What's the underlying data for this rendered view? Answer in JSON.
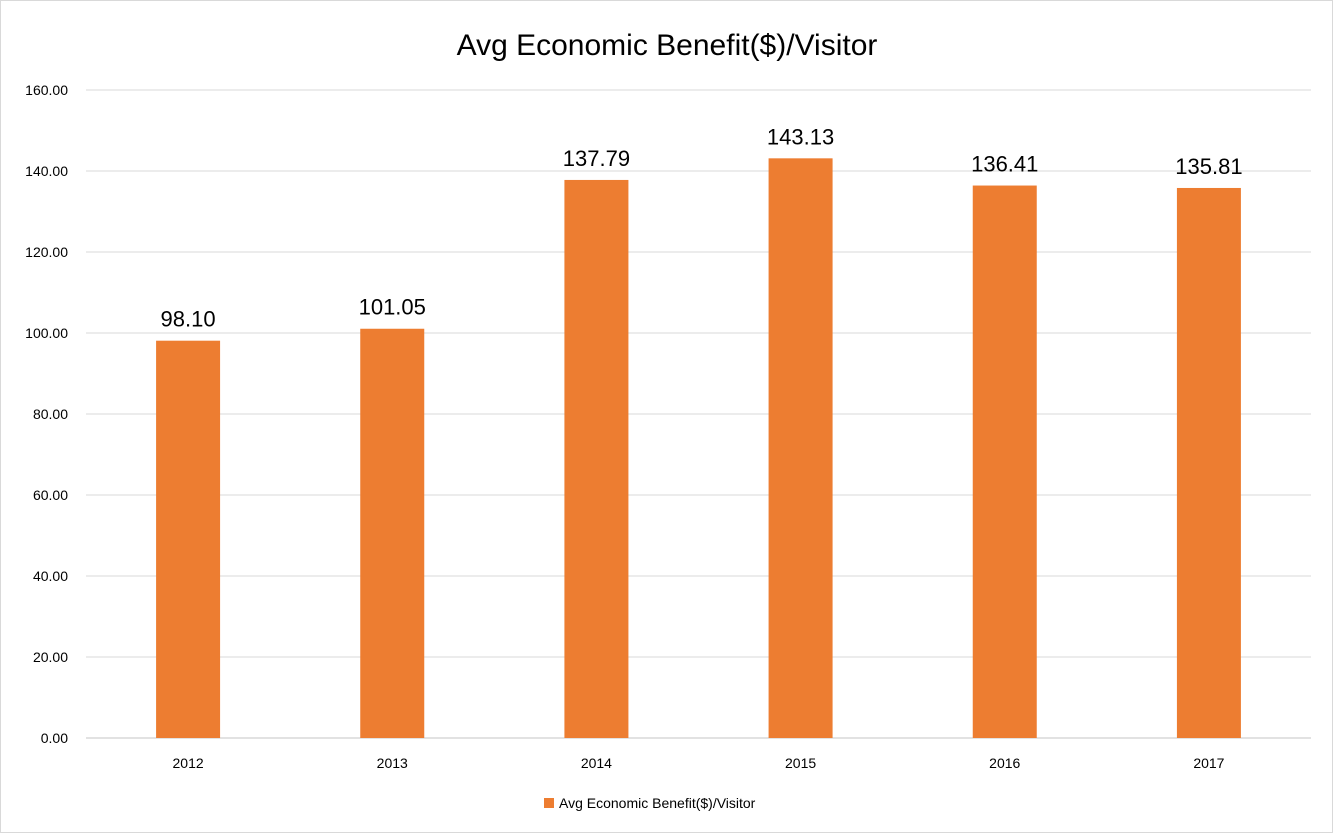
{
  "chart_data": {
    "type": "bar",
    "title": "Avg Economic Benefit($)/Visitor",
    "xlabel": "",
    "ylabel": "",
    "categories": [
      "2012",
      "2013",
      "2014",
      "2015",
      "2016",
      "2017"
    ],
    "series": [
      {
        "name": "Avg Economic Benefit($)/Visitor",
        "values": [
          98.1,
          101.05,
          137.79,
          143.13,
          136.41,
          135.81
        ],
        "data_labels": [
          "98.10",
          "101.05",
          "137.79",
          "143.13",
          "136.41",
          "135.81"
        ],
        "color": "#ED7D31"
      }
    ],
    "ylim": [
      0,
      160
    ],
    "y_ticks": [
      "0.00",
      "20.00",
      "40.00",
      "60.00",
      "80.00",
      "100.00",
      "120.00",
      "140.00",
      "160.00"
    ],
    "grid": true,
    "legend_position": "bottom",
    "colors": {
      "bar": "#ED7D31",
      "grid": "#d9d9d9",
      "text": "#000000"
    }
  }
}
